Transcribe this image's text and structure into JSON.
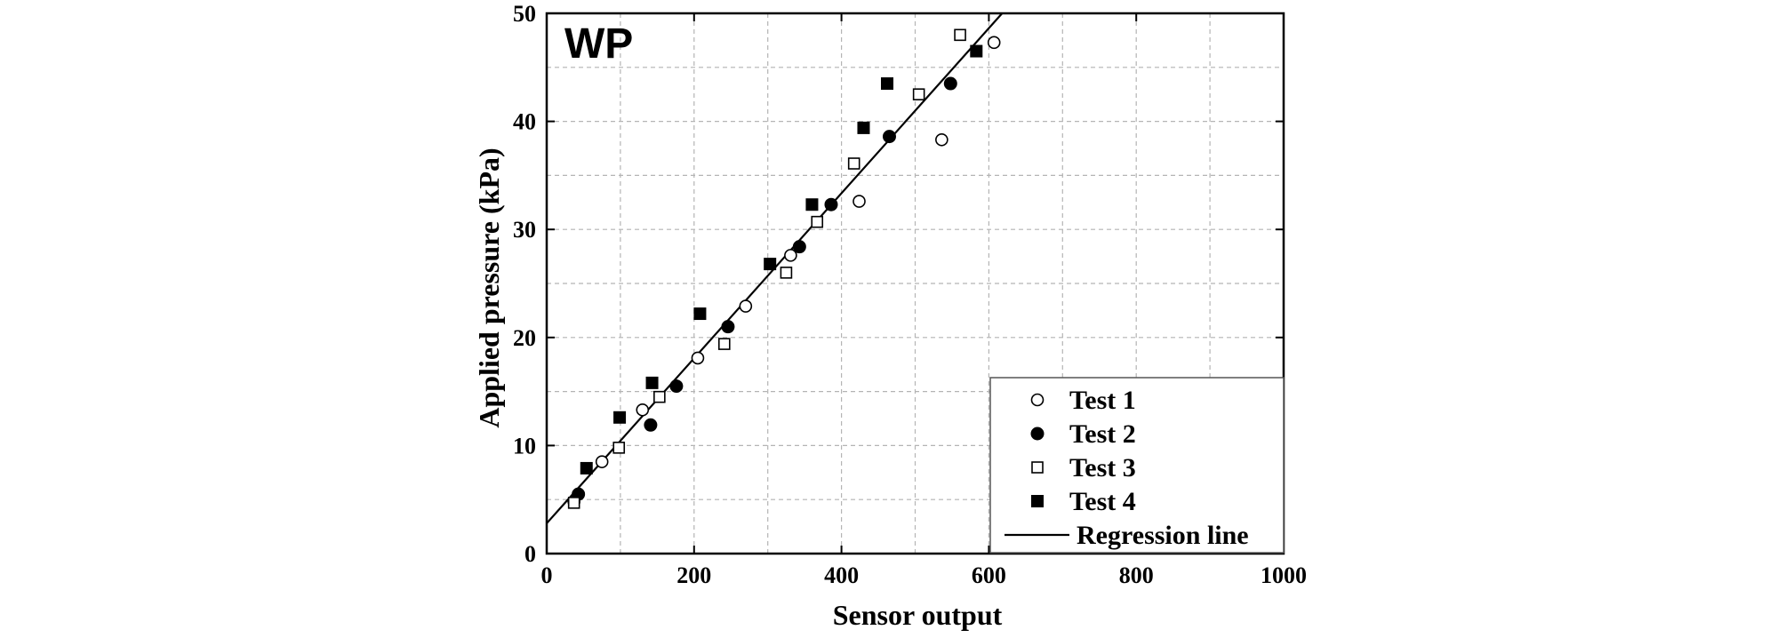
{
  "chart_data": {
    "type": "scatter",
    "title": "",
    "panel_label": "WP",
    "xlabel": "Sensor output",
    "ylabel": "Applied pressure (kPa)",
    "xlim": [
      0,
      1000
    ],
    "ylim": [
      0,
      50
    ],
    "xticks": [
      0,
      200,
      400,
      600,
      800,
      1000
    ],
    "yticks": [
      0,
      10,
      20,
      30,
      40,
      50
    ],
    "x_tick_labels": [
      "0",
      "200",
      "400",
      "600",
      "800",
      "1000"
    ],
    "y_tick_labels": [
      "0",
      "10",
      "20",
      "30",
      "40",
      "50"
    ],
    "grid": true,
    "legend_position": "bottom-right",
    "series": [
      {
        "name": "Test 1",
        "marker": "circle-open",
        "points": [
          {
            "x": 37,
            "y": 4.8
          },
          {
            "x": 75,
            "y": 8.5
          },
          {
            "x": 130,
            "y": 13.3
          },
          {
            "x": 205,
            "y": 18.1
          },
          {
            "x": 270,
            "y": 22.9
          },
          {
            "x": 331,
            "y": 27.6
          },
          {
            "x": 424,
            "y": 32.6
          },
          {
            "x": 536,
            "y": 38.3
          },
          {
            "x": 607,
            "y": 47.3
          }
        ]
      },
      {
        "name": "Test 2",
        "marker": "circle-filled",
        "points": [
          {
            "x": 43,
            "y": 5.5
          },
          {
            "x": 141,
            "y": 11.9
          },
          {
            "x": 176,
            "y": 15.5
          },
          {
            "x": 246,
            "y": 21.0
          },
          {
            "x": 343,
            "y": 28.4
          },
          {
            "x": 386,
            "y": 32.3
          },
          {
            "x": 465,
            "y": 38.6
          },
          {
            "x": 548,
            "y": 43.5
          }
        ]
      },
      {
        "name": "Test 3",
        "marker": "square-open",
        "points": [
          {
            "x": 37,
            "y": 4.7
          },
          {
            "x": 98,
            "y": 9.8
          },
          {
            "x": 153,
            "y": 14.5
          },
          {
            "x": 241,
            "y": 19.4
          },
          {
            "x": 325,
            "y": 26.0
          },
          {
            "x": 367,
            "y": 30.7
          },
          {
            "x": 417,
            "y": 36.1
          },
          {
            "x": 505,
            "y": 42.5
          },
          {
            "x": 561,
            "y": 48.0
          }
        ]
      },
      {
        "name": "Test 4",
        "marker": "square-filled",
        "points": [
          {
            "x": 54,
            "y": 7.9
          },
          {
            "x": 99,
            "y": 12.6
          },
          {
            "x": 143,
            "y": 15.8
          },
          {
            "x": 208,
            "y": 22.2
          },
          {
            "x": 303,
            "y": 26.8
          },
          {
            "x": 360,
            "y": 32.3
          },
          {
            "x": 430,
            "y": 39.4
          },
          {
            "x": 462,
            "y": 43.5
          },
          {
            "x": 583,
            "y": 46.5
          }
        ]
      }
    ],
    "regression_line": {
      "name": "Regression line",
      "x0": 0,
      "y0": 2.8,
      "x1": 618,
      "y1": 50.0
    }
  },
  "colors": {
    "marker": "#000000",
    "grid": "#b4b4b4",
    "frame": "#000000",
    "background": "#ffffff"
  }
}
